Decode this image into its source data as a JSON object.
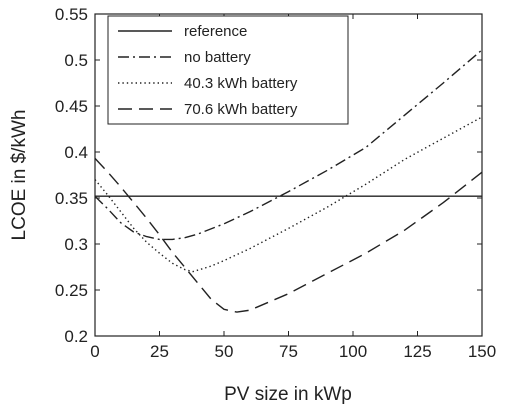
{
  "chart_data": {
    "type": "line",
    "title": "",
    "xlabel": "PV size in kWp",
    "ylabel": "LCOE in $/kWh",
    "xlim": [
      0,
      150
    ],
    "ylim": [
      0.2,
      0.55
    ],
    "xticks": [
      0,
      25,
      50,
      75,
      100,
      125,
      150
    ],
    "yticks": [
      0.2,
      0.25,
      0.3,
      0.35,
      0.4,
      0.45,
      0.5,
      0.55
    ],
    "grid": false,
    "legend_position": "top-left",
    "series": [
      {
        "name": "reference",
        "style": "solid",
        "color": "#222222",
        "x": [
          0,
          150
        ],
        "y": [
          0.352,
          0.352
        ]
      },
      {
        "name": "no battery",
        "style": "dashdot",
        "color": "#222222",
        "x": [
          0,
          5,
          10,
          15,
          20,
          25,
          30,
          35,
          40,
          50,
          60,
          75,
          90,
          105,
          120,
          135,
          150
        ],
        "y": [
          0.352,
          0.338,
          0.323,
          0.313,
          0.308,
          0.305,
          0.305,
          0.307,
          0.311,
          0.322,
          0.335,
          0.357,
          0.38,
          0.405,
          0.44,
          0.475,
          0.511
        ]
      },
      {
        "name": "40.3 kWh battery",
        "style": "dotted",
        "color": "#222222",
        "x": [
          0,
          5,
          10,
          15,
          20,
          25,
          30,
          35,
          38,
          45,
          50,
          60,
          75,
          90,
          105,
          120,
          135,
          150
        ],
        "y": [
          0.37,
          0.353,
          0.335,
          0.317,
          0.302,
          0.29,
          0.279,
          0.272,
          0.27,
          0.276,
          0.282,
          0.295,
          0.317,
          0.34,
          0.365,
          0.392,
          0.415,
          0.438
        ]
      },
      {
        "name": "70.6 kWh battery",
        "style": "dashed",
        "color": "#222222",
        "x": [
          0,
          5,
          10,
          15,
          20,
          25,
          30,
          35,
          40,
          45,
          50,
          55,
          60,
          75,
          90,
          105,
          120,
          135,
          150
        ],
        "y": [
          0.393,
          0.378,
          0.362,
          0.345,
          0.328,
          0.31,
          0.291,
          0.274,
          0.257,
          0.24,
          0.229,
          0.226,
          0.228,
          0.246,
          0.268,
          0.29,
          0.315,
          0.345,
          0.378
        ]
      }
    ]
  }
}
